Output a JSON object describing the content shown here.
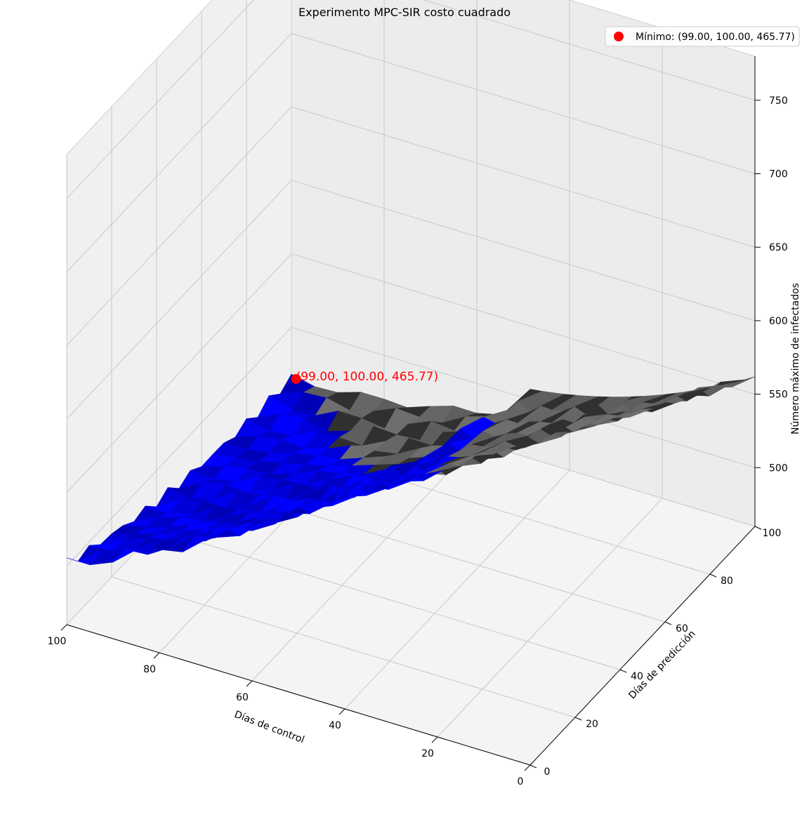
{
  "chart_data": {
    "type": "surface",
    "title": "Experimento MPC-SIR costo cuadrado",
    "xlabel": "Días de control",
    "ylabel": "Días de predicción",
    "zlabel": "Número máximo de infectados",
    "xlim": [
      0,
      100
    ],
    "ylim": [
      0,
      100
    ],
    "zlim": [
      460,
      780
    ],
    "xticks": [
      0,
      20,
      40,
      60,
      80,
      100
    ],
    "yticks": [
      0,
      20,
      40,
      60,
      80,
      100
    ],
    "zticks": [
      500,
      550,
      600,
      650,
      700,
      750
    ],
    "grid": true,
    "legend_position": "top-right",
    "surface_colors": {
      "blue_region": "#0000ff",
      "gray_region": "#6e6e6e",
      "dark_band": "#303030"
    },
    "minimum": {
      "x": 99.0,
      "y": 100.0,
      "z": 465.77,
      "legend_label": "Mínimo: (99.00, 100.00, 465.77)",
      "annotation": "(99.00, 100.00, 465.77)",
      "color": "#ff0000"
    }
  }
}
